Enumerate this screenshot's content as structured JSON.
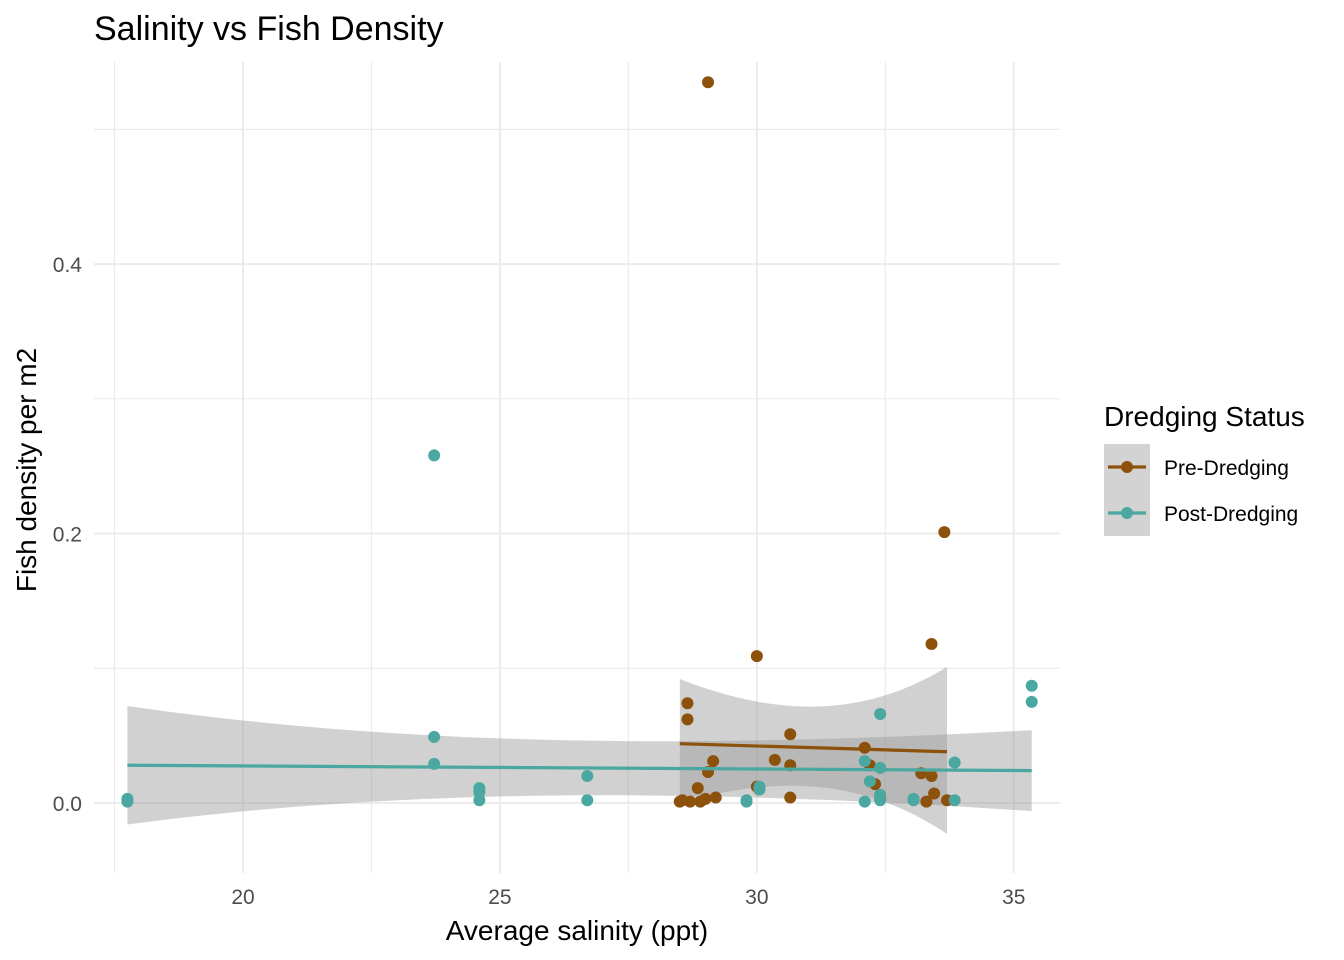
{
  "chart_data": {
    "type": "scatter",
    "title": "Salinity vs Fish Density",
    "xlabel": "Average salinity (ppt)",
    "ylabel": "Fish density per m2",
    "xlim": [
      17.1,
      35.9
    ],
    "ylim": [
      -0.052,
      0.55
    ],
    "x_ticks": [
      20,
      25,
      30,
      35
    ],
    "x_tick_labels": [
      "20",
      "25",
      "30",
      "35"
    ],
    "y_ticks": [
      0.0,
      0.2,
      0.4
    ],
    "y_tick_labels": [
      "0.0",
      "0.2",
      "0.4"
    ],
    "grid": true,
    "legend": {
      "title": "Dredging Status",
      "position": "right"
    },
    "series": [
      {
        "name": "Pre-Dredging",
        "color": "#8c510a",
        "x": [
          29.05,
          33.65,
          33.4,
          30.0,
          28.65,
          28.65,
          30.65,
          29.15,
          29.05,
          28.85,
          28.55,
          28.7,
          28.9,
          29.2,
          29.0,
          30.0,
          30.35,
          30.65,
          30.65,
          32.1,
          32.2,
          32.3,
          33.2,
          33.4,
          33.45,
          33.3,
          33.7,
          32.4,
          28.5,
          30.05
        ],
        "y": [
          0.535,
          0.201,
          0.118,
          0.109,
          0.074,
          0.062,
          0.051,
          0.031,
          0.023,
          0.011,
          0.002,
          0.001,
          0.001,
          0.004,
          0.003,
          0.012,
          0.032,
          0.028,
          0.004,
          0.041,
          0.028,
          0.014,
          0.022,
          0.02,
          0.007,
          0.001,
          0.002,
          0.003,
          0.001,
          0.01
        ],
        "trend": {
          "x": [
            28.5,
            33.7
          ],
          "y": [
            0.044,
            0.038
          ],
          "ci_lower": [
            0.0,
            -0.023
          ],
          "ci_upper": [
            0.092,
            0.101
          ]
        }
      },
      {
        "name": "Post-Dredging",
        "color": "#4aa8a0",
        "x": [
          17.75,
          17.75,
          23.72,
          23.72,
          23.72,
          24.6,
          24.6,
          24.6,
          26.7,
          26.7,
          29.8,
          29.8,
          30.05,
          30.05,
          32.1,
          32.1,
          32.2,
          32.4,
          32.4,
          32.4,
          32.4,
          33.05,
          33.05,
          33.85,
          33.85,
          35.35,
          35.35
        ],
        "y": [
          0.003,
          0.001,
          0.258,
          0.049,
          0.029,
          0.011,
          0.008,
          0.002,
          0.02,
          0.002,
          0.002,
          0.001,
          0.012,
          0.01,
          0.031,
          0.001,
          0.016,
          0.066,
          0.006,
          0.002,
          0.026,
          0.003,
          0.002,
          0.03,
          0.002,
          0.087,
          0.075
        ],
        "trend": {
          "x": [
            17.75,
            35.35
          ],
          "y": [
            0.028,
            0.024
          ],
          "ci_lower": [
            -0.016,
            -0.006
          ],
          "ci_upper": [
            0.072,
            0.054
          ]
        }
      }
    ]
  }
}
